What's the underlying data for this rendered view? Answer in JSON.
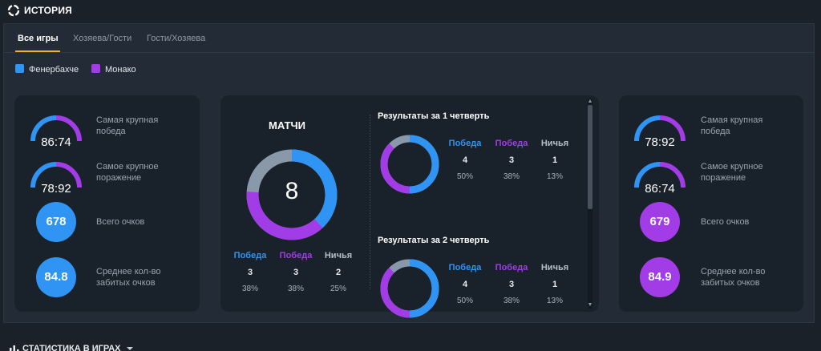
{
  "header": {
    "title": "ИСТОРИЯ"
  },
  "tabs": [
    {
      "label": "Все игры",
      "active": true
    },
    {
      "label": "Хозяева/Гости",
      "active": false
    },
    {
      "label": "Гости/Хозяева",
      "active": false
    }
  ],
  "legend": [
    {
      "name": "Фенербахче",
      "color": "#2f94f3"
    },
    {
      "name": "Монако",
      "color": "#a23ce6"
    }
  ],
  "colors": {
    "team1": "#2f94f3",
    "team2": "#a23ce6",
    "draw": "#8a99aa",
    "accent": "#f0b323"
  },
  "left_team": {
    "biggest_win": {
      "label": "Самая крупная победа",
      "score": "86:74"
    },
    "biggest_loss": {
      "label": "Самое крупное поражение",
      "score": "78:92"
    },
    "total_points": {
      "label": "Всего очков",
      "value": "678"
    },
    "avg_points": {
      "label": "Среднее кол-во забитых очков",
      "value": "84.8"
    }
  },
  "right_team": {
    "biggest_win": {
      "label": "Самая крупная победа",
      "score": "78:92"
    },
    "biggest_loss": {
      "label": "Самое крупное поражение",
      "score": "86:74"
    },
    "total_points": {
      "label": "Всего очков",
      "value": "679"
    },
    "avg_points": {
      "label": "Среднее кол-во забитых очков",
      "value": "84.9"
    }
  },
  "matches": {
    "title": "МАТЧИ",
    "total": "8",
    "results": [
      {
        "label": "Победа",
        "count": "3",
        "pct": "38%"
      },
      {
        "label": "Победа",
        "count": "3",
        "pct": "38%"
      },
      {
        "label": "Ничья",
        "count": "2",
        "pct": "25%"
      }
    ]
  },
  "quarters": [
    {
      "title": "Результаты за 1 четверть",
      "results": [
        {
          "label": "Победа",
          "count": "4",
          "pct": "50%"
        },
        {
          "label": "Победа",
          "count": "3",
          "pct": "38%"
        },
        {
          "label": "Ничья",
          "count": "1",
          "pct": "13%"
        }
      ]
    },
    {
      "title": "Результаты за 2 четверть",
      "results": [
        {
          "label": "Победа",
          "count": "4",
          "pct": "50%"
        },
        {
          "label": "Победа",
          "count": "3",
          "pct": "38%"
        },
        {
          "label": "Ничья",
          "count": "1",
          "pct": "13%"
        }
      ]
    }
  ],
  "section": {
    "title": "СТАТИСТИКА В ИГРАХ"
  }
}
